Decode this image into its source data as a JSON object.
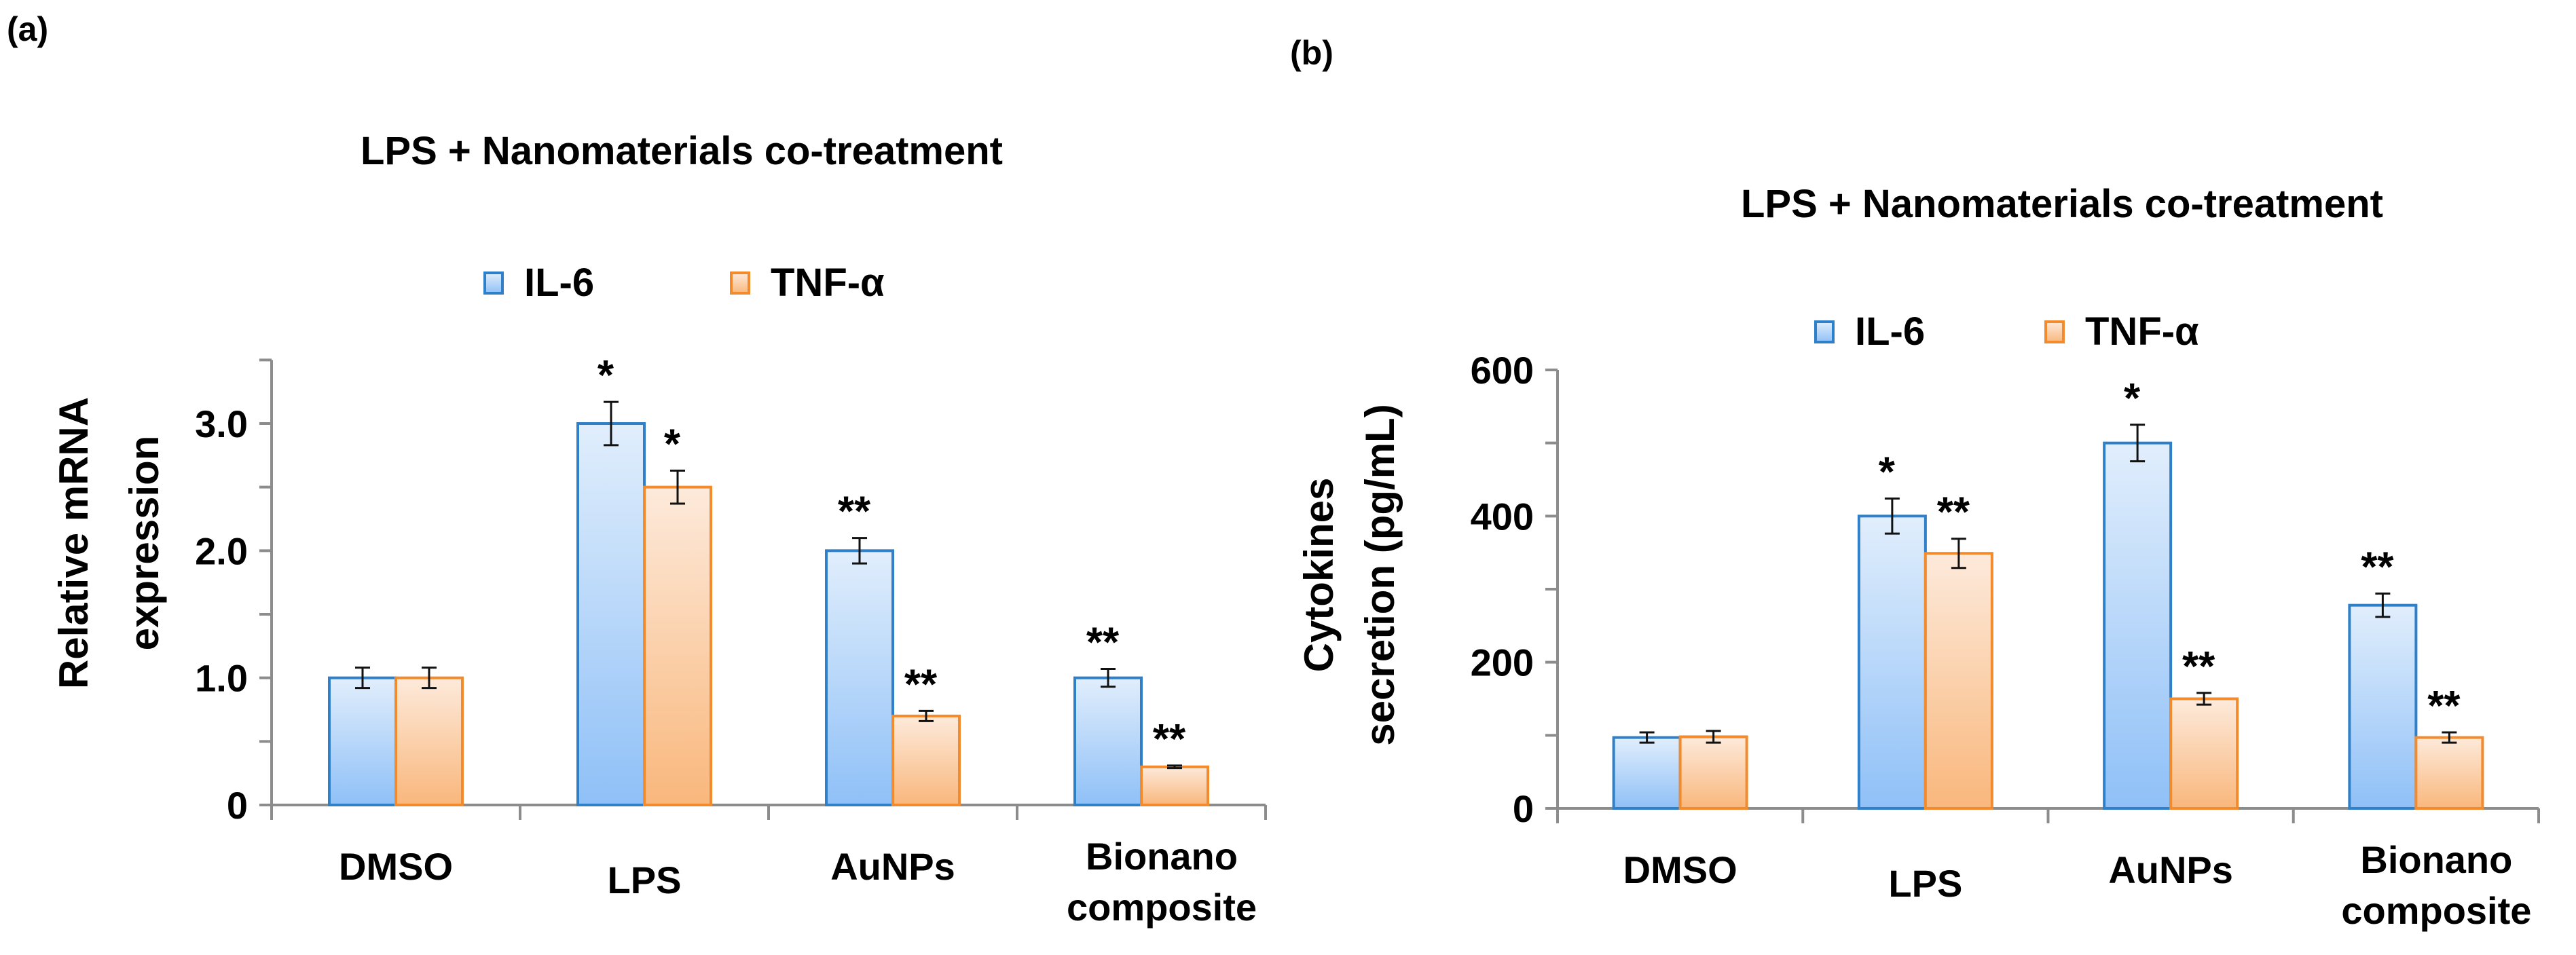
{
  "colors": {
    "il6_fill_top": "#e1eefc",
    "il6_fill_bottom": "#8fc0f7",
    "il6_stroke": "#2f80c9",
    "tnf_fill_top": "#fdeadb",
    "tnf_fill_bottom": "#f9b77c",
    "tnf_stroke": "#f28a2e",
    "axis": "#8c8c8c"
  },
  "chart_data": [
    {
      "panel_label": "(a)",
      "type": "bar",
      "title": "LPS + Nanomaterials  co-treatment",
      "ylabel": [
        "Relative mRNA",
        "expression"
      ],
      "xlabel": "",
      "categories": [
        [
          "DMSO"
        ],
        [
          "LPS"
        ],
        [
          "AuNPs"
        ],
        [
          "Bionano",
          "composite"
        ]
      ],
      "ylim": [
        0,
        3.5
      ],
      "yticks": [
        0,
        1.0,
        2.0,
        3.0
      ],
      "ytick_labels": [
        "0",
        "1.0",
        "2.0",
        "3.0"
      ],
      "minor_ticks": [
        0.5,
        1.5,
        2.5,
        3.5
      ],
      "grid": false,
      "legend_placement": "top-center",
      "series": [
        {
          "name": "IL-6",
          "values": [
            1.0,
            3.0,
            2.0,
            1.0
          ],
          "errors": [
            0.08,
            0.17,
            0.1,
            0.07
          ],
          "significance": [
            "",
            "*",
            "**",
            "**"
          ]
        },
        {
          "name": "TNF-α",
          "values": [
            1.0,
            2.5,
            0.7,
            0.3
          ],
          "errors": [
            0.08,
            0.13,
            0.04,
            0.01
          ],
          "significance": [
            "",
            "*",
            "**",
            "**"
          ]
        }
      ]
    },
    {
      "panel_label": "(b)",
      "type": "bar",
      "title": "LPS + Nanomaterials  co-treatment",
      "ylabel": [
        "Cytokines",
        "secretion (pg/mL)"
      ],
      "xlabel": "",
      "categories": [
        [
          "DMSO"
        ],
        [
          "LPS"
        ],
        [
          "AuNPs"
        ],
        [
          "Bionano",
          "composite"
        ]
      ],
      "ylim": [
        0,
        600
      ],
      "yticks": [
        0,
        200,
        400,
        600
      ],
      "ytick_labels": [
        "0",
        "200",
        "400",
        "600"
      ],
      "minor_ticks": [
        100,
        300,
        500
      ],
      "grid": false,
      "legend_placement": "top-center",
      "series": [
        {
          "name": "IL-6",
          "values": [
            97,
            400,
            500,
            278
          ],
          "errors": [
            7,
            24,
            25,
            16
          ],
          "significance": [
            "",
            "*",
            "*",
            "**"
          ]
        },
        {
          "name": "TNF-α",
          "values": [
            98,
            349,
            150,
            97
          ],
          "errors": [
            8,
            20,
            8,
            7
          ],
          "significance": [
            "",
            "**",
            "**",
            "**"
          ]
        }
      ]
    }
  ]
}
